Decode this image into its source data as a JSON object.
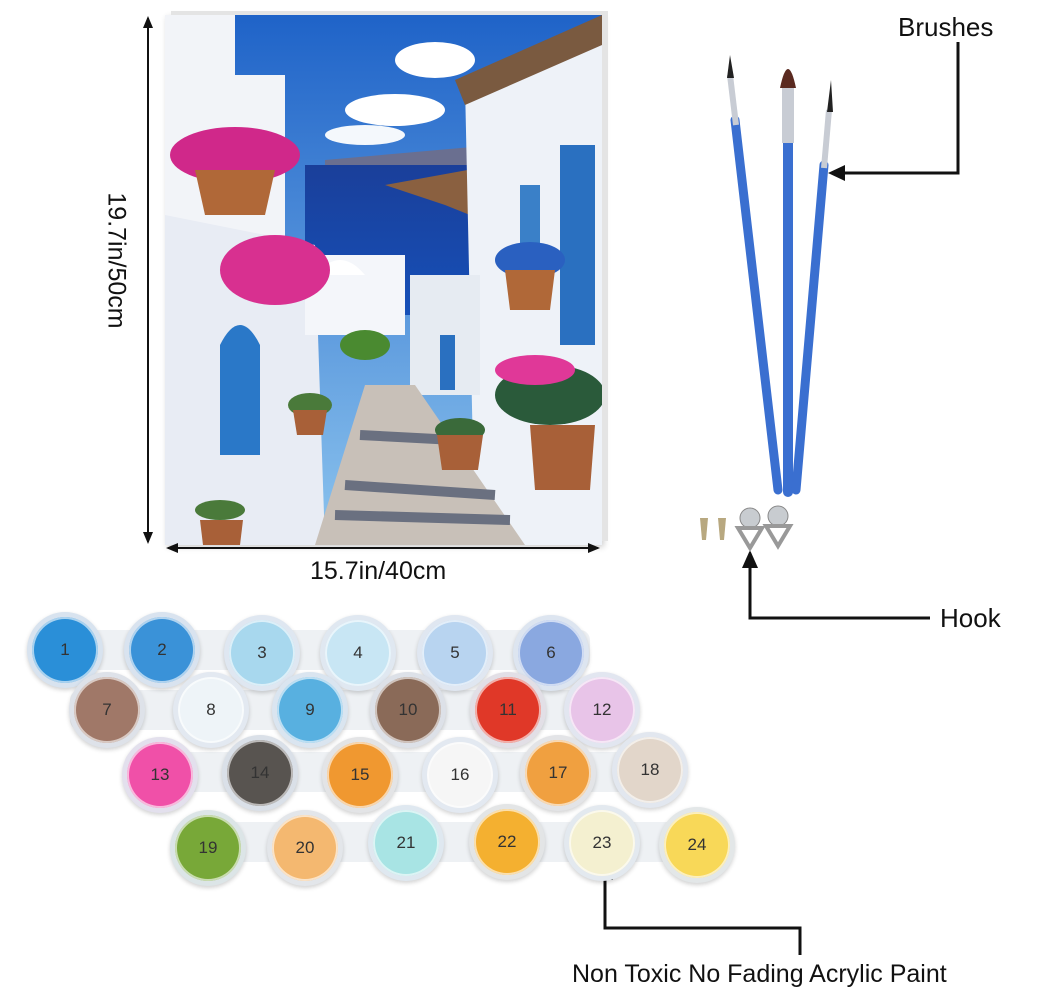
{
  "dimensions": {
    "height": "19.7in/50cm",
    "width": "15.7in/40cm"
  },
  "callouts": {
    "brushes": "Brushes",
    "hook": "Hook",
    "paint": "Non Toxic No Fading Acrylic Paint"
  },
  "brush_color": "#3a6fd0",
  "paint_pots": [
    {
      "number": "1",
      "color": "#2a8fd8"
    },
    {
      "number": "2",
      "color": "#3a92d8"
    },
    {
      "number": "3",
      "color": "#a8d8ee"
    },
    {
      "number": "4",
      "color": "#c8e6f4"
    },
    {
      "number": "5",
      "color": "#b8d4f0"
    },
    {
      "number": "6",
      "color": "#8aa8e0"
    },
    {
      "number": "7",
      "color": "#a07868"
    },
    {
      "number": "8",
      "color": "#eef4f8"
    },
    {
      "number": "9",
      "color": "#58b0e0"
    },
    {
      "number": "10",
      "color": "#8a6a58"
    },
    {
      "number": "11",
      "color": "#e03828"
    },
    {
      "number": "12",
      "color": "#e8c4e8"
    },
    {
      "number": "13",
      "color": "#f050a8"
    },
    {
      "number": "14",
      "color": "#585450"
    },
    {
      "number": "15",
      "color": "#f09830"
    },
    {
      "number": "16",
      "color": "#f6f6f6"
    },
    {
      "number": "17",
      "color": "#f0a040"
    },
    {
      "number": "18",
      "color": "#e2d6ca"
    },
    {
      "number": "19",
      "color": "#78a838"
    },
    {
      "number": "20",
      "color": "#f4b870"
    },
    {
      "number": "21",
      "color": "#a8e4e4"
    },
    {
      "number": "22",
      "color": "#f4b030"
    },
    {
      "number": "23",
      "color": "#f4f0d0"
    },
    {
      "number": "24",
      "color": "#f8d858"
    }
  ]
}
